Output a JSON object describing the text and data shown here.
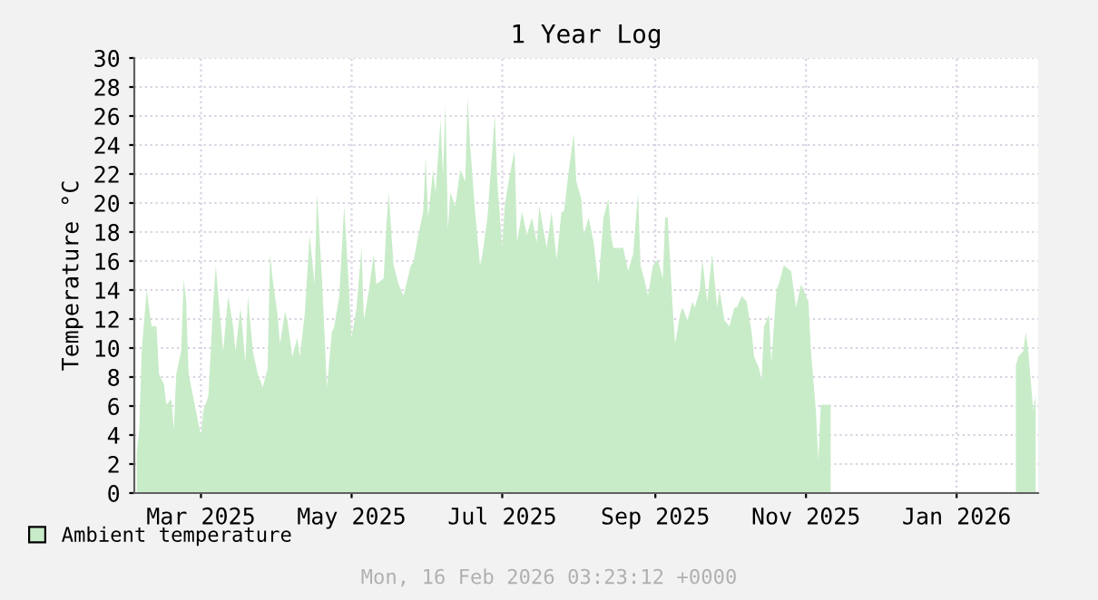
{
  "chart_data": {
    "type": "area",
    "title": "1 Year Log",
    "ylabel": "Temperature °C",
    "annotations": [
      "Mon, 16 Feb 2026 03:23:12 +0000"
    ],
    "x": [
      "2025-02-17",
      "2025-02-18",
      "2025-02-19",
      "2025-02-21",
      "2025-02-23",
      "2025-02-25",
      "2025-02-26",
      "2025-02-28",
      "2025-03-01",
      "2025-03-03",
      "2025-03-04",
      "2025-03-05",
      "2025-03-07",
      "2025-03-08",
      "2025-03-09",
      "2025-03-10",
      "2025-03-12",
      "2025-03-14",
      "2025-03-15",
      "2025-03-16",
      "2025-03-18",
      "2025-03-20",
      "2025-03-21",
      "2025-03-22",
      "2025-03-24",
      "2025-03-26",
      "2025-03-28",
      "2025-03-29",
      "2025-03-31",
      "2025-04-02",
      "2025-04-03",
      "2025-04-05",
      "2025-04-07",
      "2025-04-09",
      "2025-04-11",
      "2025-04-12",
      "2025-04-13",
      "2025-04-15",
      "2025-04-16",
      "2025-04-18",
      "2025-04-19",
      "2025-04-21",
      "2025-04-23",
      "2025-04-24",
      "2025-04-26",
      "2025-04-28",
      "2025-04-30",
      "2025-05-01",
      "2025-05-03",
      "2025-05-05",
      "2025-05-07",
      "2025-05-08",
      "2025-05-10",
      "2025-05-12",
      "2025-05-13",
      "2025-05-15",
      "2025-05-17",
      "2025-05-19",
      "2025-05-20",
      "2025-05-22",
      "2025-05-24",
      "2025-05-25",
      "2025-05-28",
      "2025-05-29",
      "2025-05-30",
      "2025-06-01",
      "2025-06-03",
      "2025-06-05",
      "2025-06-08",
      "2025-06-09",
      "2025-06-11",
      "2025-06-13",
      "2025-06-14",
      "2025-06-15",
      "2025-06-17",
      "2025-06-18",
      "2025-06-20",
      "2025-06-21",
      "2025-06-22",
      "2025-06-23",
      "2025-06-24",
      "2025-06-26",
      "2025-06-28",
      "2025-06-30",
      "2025-07-01",
      "2025-07-02",
      "2025-07-04",
      "2025-07-06",
      "2025-07-07",
      "2025-07-09",
      "2025-07-12",
      "2025-07-13",
      "2025-07-15",
      "2025-07-16",
      "2025-07-18",
      "2025-07-20",
      "2025-07-21",
      "2025-07-23",
      "2025-07-25",
      "2025-07-27",
      "2025-07-29",
      "2025-07-30",
      "2025-08-02",
      "2025-08-04",
      "2025-08-06",
      "2025-08-08",
      "2025-08-09",
      "2025-08-11",
      "2025-08-13",
      "2025-08-14",
      "2025-08-16",
      "2025-08-17",
      "2025-08-19",
      "2025-08-21",
      "2025-08-23",
      "2025-08-25",
      "2025-08-27",
      "2025-08-28",
      "2025-08-29",
      "2025-08-31",
      "2025-09-02",
      "2025-09-04",
      "2025-09-06",
      "2025-09-08",
      "2025-09-09",
      "2025-09-11",
      "2025-09-12",
      "2025-09-14",
      "2025-09-16",
      "2025-09-18",
      "2025-09-19",
      "2025-09-20",
      "2025-09-22",
      "2025-09-23",
      "2025-09-25",
      "2025-09-26",
      "2025-09-28",
      "2025-09-30",
      "2025-10-01",
      "2025-10-03",
      "2025-10-04",
      "2025-10-06",
      "2025-10-08",
      "2025-10-10",
      "2025-10-11",
      "2025-10-13",
      "2025-10-15",
      "2025-10-17",
      "2025-10-18",
      "2025-10-20",
      "2025-10-22",
      "2025-10-24",
      "2025-10-25",
      "2025-10-27",
      "2025-10-28",
      "2025-10-29",
      "2025-10-31",
      "2025-11-01",
      "2025-11-03",
      "2025-11-04",
      "2025-11-06",
      "2025-11-09",
      "2025-11-11",
      "2025-11-13",
      "2025-11-14",
      "2025-11-16",
      "2025-11-17",
      "2025-11-19",
      "2025-11-20",
      "2025-11-21",
      "2025-11-24",
      "2025-11-25",
      "2025-11-26",
      "2026-02-07",
      "2026-02-08",
      "2026-02-09",
      "2026-02-11",
      "2026-02-12",
      "2026-02-13",
      "2026-02-14",
      "2026-02-15",
      "2026-02-16"
    ],
    "series": [
      {
        "name": "Ambient temperature",
        "color": "#c8ecc8",
        "values": [
          2.8,
          4.4,
          9.8,
          14,
          11.5,
          11.5,
          8.2,
          7.5,
          6.1,
          6.5,
          4.4,
          8.2,
          9.8,
          14.8,
          13.2,
          8.2,
          6.5,
          4.8,
          4,
          5.7,
          6.7,
          13.2,
          15.7,
          13.6,
          9.8,
          13.6,
          11.5,
          9.8,
          12.8,
          9,
          13.6,
          9.8,
          8.2,
          7.3,
          8.6,
          16.5,
          14.8,
          12.3,
          10.3,
          12.5,
          11.9,
          9.4,
          10.7,
          9.4,
          12.3,
          17.8,
          14.4,
          20.7,
          14.8,
          7.3,
          11.1,
          11.5,
          13.6,
          19.8,
          16.9,
          10.7,
          12.8,
          16.9,
          11.9,
          14,
          16.5,
          14.4,
          14.8,
          18.2,
          20.7,
          15.7,
          14.4,
          13.6,
          15.7,
          15.9,
          17.8,
          19.4,
          23.2,
          19,
          22.3,
          20.7,
          25.7,
          21.9,
          26.9,
          18.2,
          20.7,
          19.8,
          22.3,
          21.5,
          27.3,
          24,
          19.4,
          15.7,
          16.5,
          19,
          26.1,
          21.5,
          16.9,
          19.8,
          21.9,
          23.6,
          17.3,
          19.4,
          17.8,
          19,
          17.3,
          19.8,
          16.9,
          19.4,
          16.1,
          19.4,
          19.4,
          22.3,
          24.8,
          21.5,
          20.3,
          17.8,
          19,
          17.3,
          14.4,
          19,
          20.3,
          17.8,
          16.9,
          16.9,
          16.9,
          15.3,
          16.5,
          20.7,
          15.7,
          14.4,
          13.6,
          15.7,
          16.1,
          14.8,
          19,
          19,
          12.8,
          10.3,
          12.3,
          12.8,
          11.9,
          13.2,
          12.8,
          14,
          16.1,
          13.2,
          16.5,
          12.8,
          14,
          11.9,
          11.5,
          12.8,
          12.8,
          13.6,
          13.2,
          11.1,
          9.4,
          8.6,
          7.8,
          11.5,
          12.3,
          9,
          14,
          14.4,
          15.7,
          15.3,
          12.8,
          14.4,
          14,
          13.2,
          9.8,
          5.7,
          2.2,
          6.1,
          6.1,
          6.1,
          null,
          null,
          8.8,
          9.4,
          9.8,
          11.1,
          9.8,
          7.8,
          5.7,
          6.7
        ]
      }
    ],
    "xlim": [
      "2025-02-16",
      "2026-02-17"
    ],
    "xticks": [
      {
        "value": "2025-03-15",
        "label": "Mar 2025"
      },
      {
        "value": "2025-05-15",
        "label": "May 2025"
      },
      {
        "value": "2025-07-15",
        "label": "Jul 2025"
      },
      {
        "value": "2025-09-15",
        "label": "Sep 2025"
      },
      {
        "value": "2025-11-15",
        "label": "Nov 2025"
      },
      {
        "value": "2026-01-15",
        "label": "Jan 2026"
      }
    ],
    "ylim": [
      0,
      30
    ],
    "yticks": [
      0,
      2,
      4,
      6,
      8,
      10,
      12,
      14,
      16,
      18,
      20,
      22,
      24,
      26,
      28,
      30
    ],
    "grid": true,
    "legend": "bottom left"
  }
}
